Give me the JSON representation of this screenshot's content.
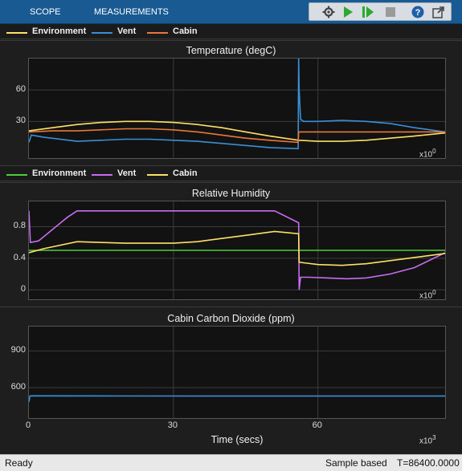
{
  "toolbar": {
    "tabs": [
      "SCOPE",
      "MEASUREMENTS"
    ],
    "tools": [
      "settings-icon",
      "run-icon",
      "step-forward-icon",
      "stop-icon",
      "help-icon",
      "undock-icon"
    ]
  },
  "legends": [
    [
      {
        "label": "Environment",
        "color": "#ffe066"
      },
      {
        "label": "Vent",
        "color": "#3a8fd8"
      },
      {
        "label": "Cabin",
        "color": "#e8793a"
      }
    ],
    [
      {
        "label": "Environment",
        "color": "#4ccf3a"
      },
      {
        "label": "Vent",
        "color": "#c86cf0"
      },
      {
        "label": "Cabin",
        "color": "#ffe066"
      }
    ]
  ],
  "chart_data": [
    {
      "type": "line",
      "title": "Temperature (degC)",
      "xlim": [
        0,
        86400
      ],
      "ylim": [
        -5,
        90
      ],
      "yticks": [
        "60",
        "30"
      ],
      "ytick_values": [
        60,
        30
      ],
      "x_exponent": "x10",
      "x_exponent_power": "0",
      "series": [
        {
          "name": "Environment",
          "color": "#ffe066",
          "x": [
            0,
            5000,
            10000,
            15000,
            20000,
            25000,
            30000,
            35000,
            40000,
            45000,
            50000,
            56000,
            60000,
            65000,
            70000,
            75000,
            80000,
            86400
          ],
          "y": [
            21,
            24,
            27,
            29,
            30,
            30,
            29,
            27,
            24,
            20,
            16,
            12,
            11,
            11,
            12,
            14,
            16,
            19
          ]
        },
        {
          "name": "Vent",
          "color": "#3a8fd8",
          "x": [
            0,
            500,
            3000,
            10000,
            15000,
            20000,
            25000,
            30000,
            35000,
            40000,
            45000,
            50000,
            55900,
            56000,
            56100,
            56400,
            57000,
            60000,
            65000,
            70000,
            75000,
            80000,
            86400
          ],
          "y": [
            10,
            17,
            15,
            11,
            12,
            13,
            13,
            12,
            11,
            9,
            7,
            5,
            4,
            90,
            60,
            32,
            30,
            30,
            31,
            30,
            28,
            24,
            20
          ]
        },
        {
          "name": "Cabin",
          "color": "#e8793a",
          "x": [
            0,
            5000,
            10000,
            15000,
            20000,
            25000,
            30000,
            35000,
            40000,
            45000,
            50000,
            55900,
            56000,
            60000,
            70000,
            80000,
            86400
          ],
          "y": [
            20,
            21,
            21,
            22,
            23,
            23,
            22,
            20,
            17,
            14,
            12,
            10,
            20,
            20,
            20,
            20,
            20
          ]
        }
      ]
    },
    {
      "type": "line",
      "title": "Relative Humidity",
      "xlim": [
        0,
        86400
      ],
      "ylim": [
        -0.12,
        1.12
      ],
      "yticks": [
        "0.8",
        "0.4",
        "0"
      ],
      "ytick_values": [
        0.8,
        0.4,
        0
      ],
      "x_exponent": "x10",
      "x_exponent_power": "0",
      "series": [
        {
          "name": "Environment",
          "color": "#4ccf3a",
          "x": [
            0,
            86400
          ],
          "y": [
            0.5,
            0.5
          ]
        },
        {
          "name": "Vent",
          "color": "#c86cf0",
          "x": [
            0,
            300,
            2000,
            4000,
            6000,
            8000,
            10000,
            20000,
            30000,
            40000,
            51000,
            56000,
            56100,
            56400,
            58000,
            62000,
            66000,
            70000,
            75000,
            80000,
            86400
          ],
          "y": [
            1.0,
            0.6,
            0.62,
            0.72,
            0.82,
            0.92,
            1.0,
            1.0,
            1.0,
            1.0,
            1.0,
            0.85,
            0.0,
            0.16,
            0.16,
            0.15,
            0.14,
            0.15,
            0.2,
            0.28,
            0.47
          ]
        },
        {
          "name": "Cabin",
          "color": "#ffe066",
          "x": [
            0,
            3000,
            10000,
            15000,
            20000,
            30000,
            35000,
            40000,
            45000,
            51000,
            56000,
            56100,
            60000,
            65000,
            70000,
            75000,
            80000,
            86400
          ],
          "y": [
            0.47,
            0.52,
            0.61,
            0.6,
            0.59,
            0.59,
            0.61,
            0.65,
            0.69,
            0.74,
            0.71,
            0.35,
            0.32,
            0.31,
            0.33,
            0.37,
            0.41,
            0.46
          ]
        }
      ]
    },
    {
      "type": "line",
      "title": "Cabin Carbon Dioxide (ppm)",
      "xlim": [
        0,
        86400
      ],
      "ylim": [
        350,
        1100
      ],
      "yticks": [
        "900",
        "600"
      ],
      "ytick_values": [
        900,
        600
      ],
      "xticks": [
        "0",
        "30",
        "60"
      ],
      "xtick_values": [
        0,
        30000,
        60000
      ],
      "xlabel": "Time (secs)",
      "x_exponent": "x10",
      "x_exponent_power": "3",
      "series": [
        {
          "name": "",
          "color": "#3a8fd8",
          "x": [
            0,
            200,
            500,
            20000,
            40000,
            60000,
            86400
          ],
          "y": [
            480,
            530,
            532,
            531,
            530,
            530,
            530
          ]
        }
      ]
    }
  ],
  "status": {
    "left": "Ready",
    "mode": "Sample based",
    "time": "T=86400.0000"
  }
}
